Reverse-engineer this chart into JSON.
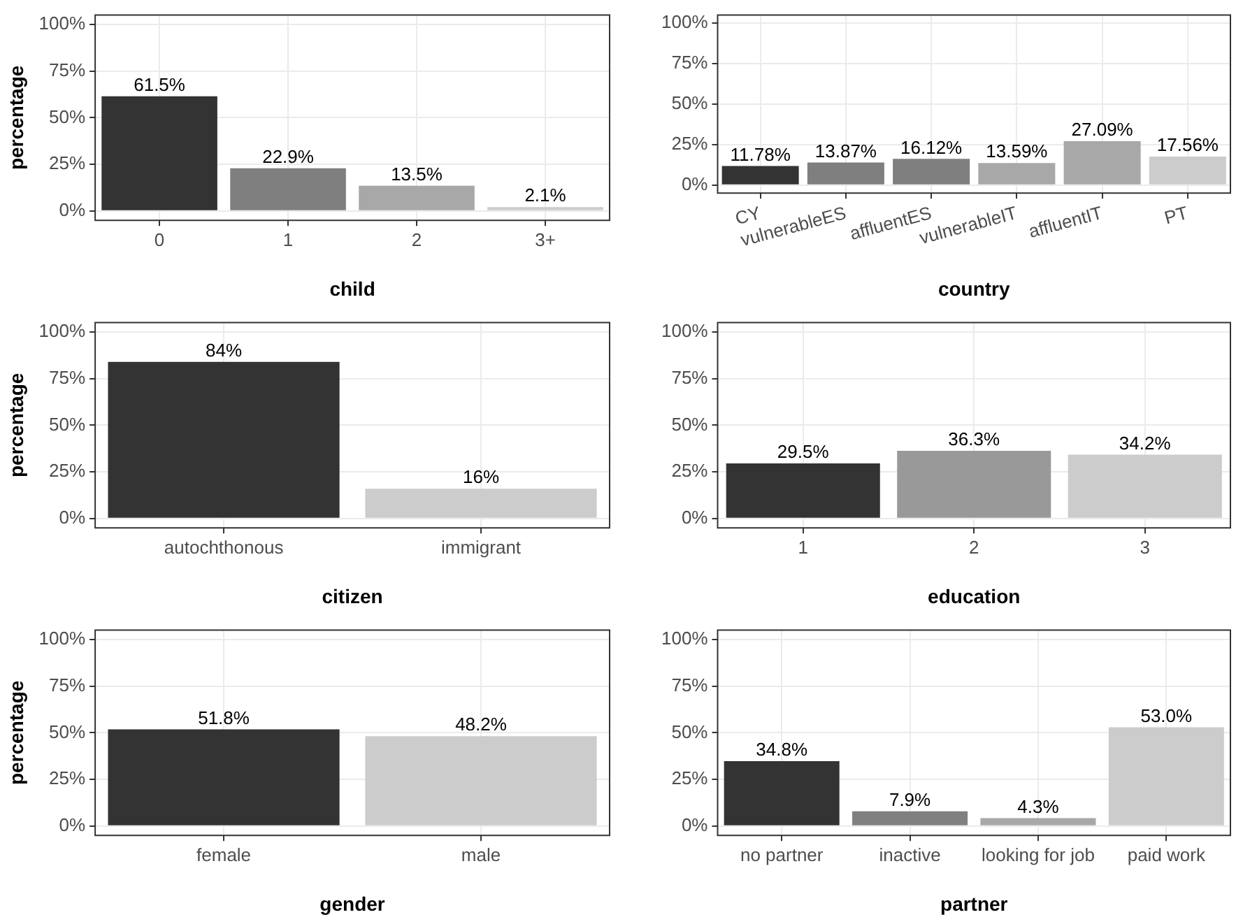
{
  "chart_data": [
    {
      "type": "bar",
      "xlabel": "child",
      "ylabel": "percentage",
      "categories": [
        "0",
        "1",
        "2",
        "3+"
      ],
      "values": [
        61.5,
        22.9,
        13.5,
        2.1
      ],
      "colors": [
        "#333333",
        "#7f7f7f",
        "#a8a8a8",
        "#cccccc"
      ],
      "value_labels": [
        "61.5%",
        "22.9%",
        "13.5%",
        "2.1%"
      ],
      "ylim": [
        -5,
        105
      ],
      "yticks": [
        {
          "value": 0,
          "label": "0%"
        },
        {
          "value": 25,
          "label": "25%"
        },
        {
          "value": 50,
          "label": "50%"
        },
        {
          "value": 75,
          "label": "75%"
        },
        {
          "value": 100,
          "label": "100%"
        }
      ],
      "grid": true
    },
    {
      "type": "bar",
      "xlabel": "country",
      "categories": [
        "CY",
        "vulnerableES",
        "affluentES",
        "vulnerableIT",
        "affluentIT",
        "PT"
      ],
      "values": [
        11.78,
        13.87,
        16.12,
        13.59,
        27.09,
        17.56
      ],
      "colors": [
        "#333333",
        "#7f7f7f",
        "#7f7f7f",
        "#a8a8a8",
        "#a8a8a8",
        "#cccccc"
      ],
      "value_labels": [
        "11.78%",
        "13.87%",
        "16.12%",
        "13.59%",
        "27.09%",
        "17.56%"
      ],
      "ylim": [
        -5,
        105
      ],
      "yticks": [
        {
          "value": 0,
          "label": "0%"
        },
        {
          "value": 25,
          "label": "25%"
        },
        {
          "value": 50,
          "label": "50%"
        },
        {
          "value": 75,
          "label": "75%"
        },
        {
          "value": 100,
          "label": "100%"
        }
      ],
      "grid": true
    },
    {
      "type": "bar",
      "xlabel": "citizen",
      "ylabel": "percentage",
      "categories": [
        "autochthonous",
        "immigrant"
      ],
      "values": [
        84,
        16
      ],
      "colors": [
        "#333333",
        "#cccccc"
      ],
      "value_labels": [
        "84%",
        "16%"
      ],
      "ylim": [
        -5,
        105
      ],
      "yticks": [
        {
          "value": 0,
          "label": "0%"
        },
        {
          "value": 25,
          "label": "25%"
        },
        {
          "value": 50,
          "label": "50%"
        },
        {
          "value": 75,
          "label": "75%"
        },
        {
          "value": 100,
          "label": "100%"
        }
      ],
      "grid": true
    },
    {
      "type": "bar",
      "xlabel": "education",
      "categories": [
        "1",
        "2",
        "3"
      ],
      "values": [
        29.5,
        36.3,
        34.2
      ],
      "colors": [
        "#333333",
        "#999999",
        "#cccccc"
      ],
      "value_labels": [
        "29.5%",
        "36.3%",
        "34.2%"
      ],
      "ylim": [
        -5,
        105
      ],
      "yticks": [
        {
          "value": 0,
          "label": "0%"
        },
        {
          "value": 25,
          "label": "25%"
        },
        {
          "value": 50,
          "label": "50%"
        },
        {
          "value": 75,
          "label": "75%"
        },
        {
          "value": 100,
          "label": "100%"
        }
      ],
      "grid": true
    },
    {
      "type": "bar",
      "xlabel": "gender",
      "ylabel": "percentage",
      "categories": [
        "female",
        "male"
      ],
      "values": [
        51.8,
        48.2
      ],
      "colors": [
        "#333333",
        "#cccccc"
      ],
      "value_labels": [
        "51.8%",
        "48.2%"
      ],
      "ylim": [
        -5,
        105
      ],
      "yticks": [
        {
          "value": 0,
          "label": "0%"
        },
        {
          "value": 25,
          "label": "25%"
        },
        {
          "value": 50,
          "label": "50%"
        },
        {
          "value": 75,
          "label": "75%"
        },
        {
          "value": 100,
          "label": "100%"
        }
      ],
      "grid": true
    },
    {
      "type": "bar",
      "xlabel": "partner",
      "categories": [
        "no partner",
        "inactive",
        "looking for job",
        "paid work"
      ],
      "values": [
        34.8,
        7.9,
        4.3,
        53.0
      ],
      "colors": [
        "#333333",
        "#808080",
        "#a8a8a8",
        "#cccccc"
      ],
      "value_labels": [
        "34.8%",
        "7.9%",
        "4.3%",
        "53.0%"
      ],
      "ylim": [
        -5,
        105
      ],
      "yticks": [
        {
          "value": 0,
          "label": "0%"
        },
        {
          "value": 25,
          "label": "25%"
        },
        {
          "value": 50,
          "label": "50%"
        },
        {
          "value": 75,
          "label": "75%"
        },
        {
          "value": 100,
          "label": "100%"
        }
      ],
      "grid": true
    }
  ]
}
